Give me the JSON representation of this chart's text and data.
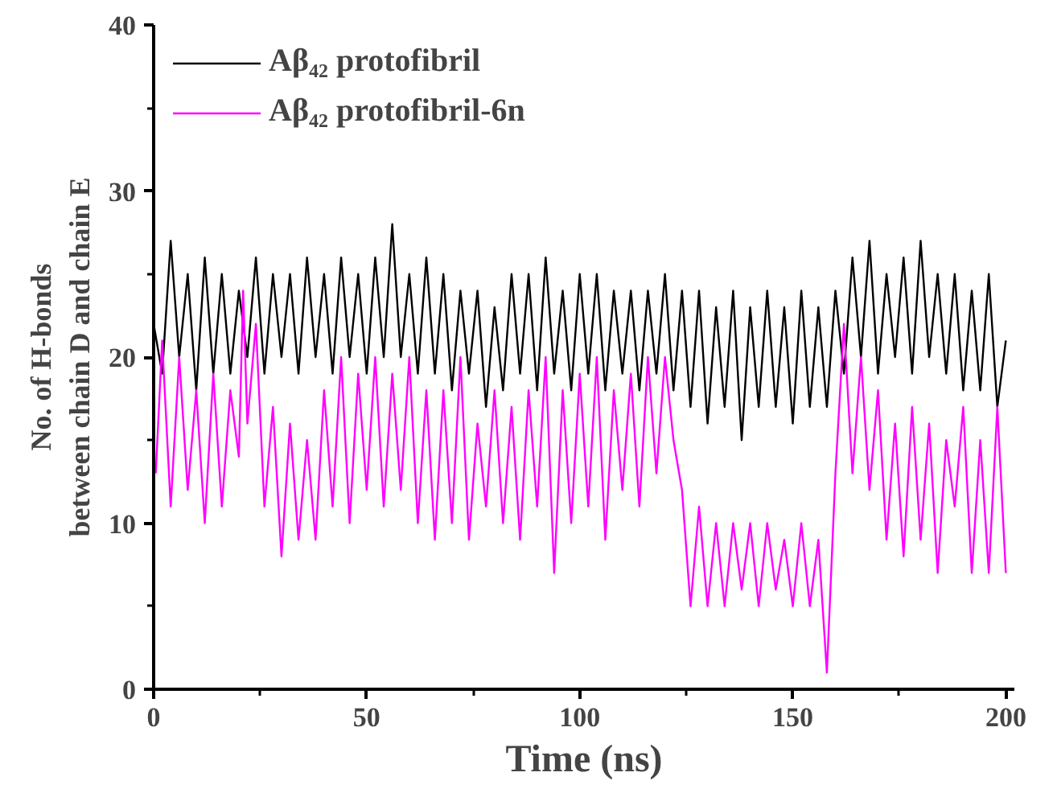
{
  "chart_data": {
    "type": "line",
    "xlabel": "Time (ns)",
    "ylabel": "No. of H-bonds\nbetween chain D and chain E",
    "xlim": [
      0,
      202
    ],
    "ylim": [
      0,
      40
    ],
    "xticks": [
      0,
      {
        "value": 25,
        "label": null
      },
      50,
      {
        "value": 75,
        "label": null
      },
      100,
      {
        "value": 125,
        "label": null
      },
      150,
      {
        "value": 175,
        "label": null
      },
      200
    ],
    "yticks": [
      0,
      {
        "value": 5,
        "label": null
      },
      10,
      {
        "value": 15,
        "label": null
      },
      20,
      {
        "value": 25,
        "label": null
      },
      30,
      {
        "value": 35,
        "label": null
      },
      40
    ],
    "grid": false,
    "legend": "top left",
    "marker": "none",
    "line_style": "solid",
    "series": [
      {
        "name": "Aβ₄₂ protofibril",
        "color": "#000000",
        "x": [
          0,
          2,
          4,
          6,
          8,
          10,
          12,
          14,
          16,
          18,
          20,
          22,
          24,
          26,
          28,
          30,
          32,
          34,
          36,
          38,
          40,
          42,
          44,
          46,
          48,
          50,
          52,
          54,
          56,
          58,
          60,
          62,
          64,
          66,
          68,
          70,
          72,
          74,
          76,
          78,
          80,
          82,
          84,
          86,
          88,
          90,
          92,
          94,
          96,
          98,
          100,
          102,
          104,
          106,
          108,
          110,
          112,
          114,
          116,
          118,
          120,
          122,
          124,
          126,
          128,
          130,
          132,
          134,
          136,
          138,
          140,
          142,
          144,
          146,
          148,
          150,
          152,
          154,
          156,
          158,
          160,
          162,
          164,
          166,
          168,
          170,
          172,
          174,
          176,
          178,
          180,
          182,
          184,
          186,
          188,
          190,
          192,
          194,
          196,
          198,
          200
        ],
        "values": [
          22,
          19,
          27,
          20,
          25,
          18,
          26,
          19,
          25,
          19,
          24,
          20,
          26,
          19,
          25,
          20,
          25,
          19,
          26,
          20,
          25,
          19,
          26,
          20,
          25,
          19,
          26,
          20,
          28,
          20,
          25,
          19,
          26,
          19,
          25,
          18,
          24,
          19,
          24,
          17,
          23,
          18,
          25,
          19,
          25,
          18,
          26,
          19,
          24,
          18,
          25,
          19,
          25,
          18,
          24,
          19,
          24,
          18,
          24,
          19,
          25,
          18,
          24,
          17,
          24,
          16,
          23,
          17,
          24,
          15,
          23,
          17,
          24,
          17,
          23,
          16,
          24,
          17,
          23,
          17,
          24,
          19,
          26,
          20,
          27,
          19,
          25,
          20,
          26,
          19,
          27,
          20,
          25,
          19,
          25,
          18,
          24,
          18,
          25,
          17,
          21
        ]
      },
      {
        "name": "Aβ₄₂ protofibril-6n",
        "color": "#ff00ff",
        "x": [
          0.5,
          2,
          4,
          6,
          8,
          10,
          12,
          14,
          16,
          18,
          20,
          21,
          22,
          24,
          26,
          28,
          30,
          32,
          34,
          36,
          38,
          40,
          42,
          44,
          46,
          48,
          50,
          52,
          54,
          56,
          58,
          60,
          62,
          64,
          66,
          68,
          70,
          72,
          74,
          76,
          78,
          80,
          82,
          84,
          86,
          88,
          90,
          92,
          94,
          96,
          98,
          100,
          102,
          104,
          106,
          108,
          110,
          112,
          114,
          116,
          118,
          120,
          122,
          124,
          126,
          128,
          130,
          132,
          134,
          136,
          138,
          140,
          142,
          144,
          146,
          148,
          150,
          152,
          154,
          156,
          158,
          160,
          162,
          164,
          166,
          168,
          170,
          172,
          174,
          176,
          178,
          180,
          182,
          184,
          186,
          188,
          190,
          192,
          194,
          196,
          198,
          200
        ],
        "values": [
          13,
          21,
          11,
          20,
          12,
          18,
          10,
          19,
          11,
          18,
          14,
          24,
          16,
          22,
          11,
          17,
          8,
          16,
          9,
          15,
          9,
          18,
          11,
          20,
          10,
          19,
          12,
          20,
          11,
          19,
          12,
          20,
          10,
          18,
          9,
          18,
          10,
          20,
          9,
          16,
          11,
          18,
          10,
          17,
          9,
          18,
          11,
          20,
          7,
          18,
          10,
          19,
          11,
          20,
          9,
          18,
          12,
          19,
          11,
          20,
          13,
          20,
          15,
          12,
          5,
          11,
          5,
          10,
          5,
          10,
          6,
          10,
          5,
          10,
          6,
          9,
          5,
          10,
          5,
          9,
          1,
          13,
          22,
          13,
          20,
          12,
          18,
          9,
          16,
          8,
          17,
          9,
          16,
          7,
          15,
          11,
          17,
          7,
          15,
          7,
          17,
          7
        ]
      }
    ]
  }
}
